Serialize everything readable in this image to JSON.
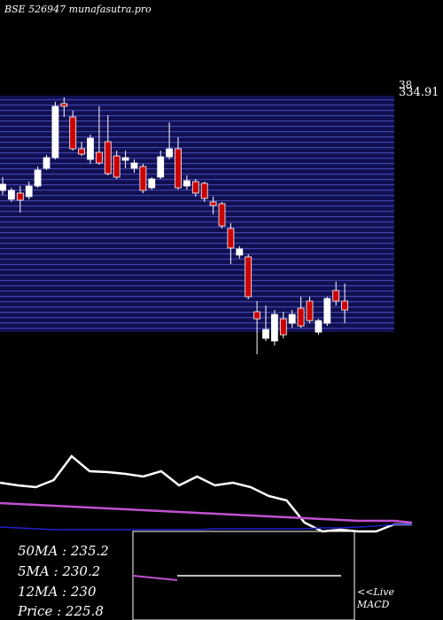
{
  "chart_data": [
    {
      "type": "candlestick",
      "title": "BSE 526947 munafasutra.pro",
      "axis_labels": [
        "38",
        "334.91"
      ],
      "up_color": "#ffffff",
      "down_color": "#cc0000",
      "ylim": [
        190,
        336
      ],
      "open": [
        282.5,
        277.5,
        281,
        279,
        285,
        295,
        301,
        331.5,
        324,
        306,
        300,
        304,
        310,
        302,
        299.5,
        295,
        296,
        284,
        290,
        301.5,
        306,
        285,
        287.5,
        286.5,
        276,
        275,
        261,
        246,
        245,
        214,
        199,
        197.5,
        210,
        207.5,
        216,
        220,
        202.5,
        207.5,
        226,
        220
      ],
      "high": [
        290,
        284,
        285,
        287.5,
        296,
        302.5,
        332.5,
        335,
        327.5,
        310,
        314,
        330,
        325,
        305,
        305,
        300,
        297.5,
        290,
        305,
        321,
        312.5,
        291,
        289,
        287.5,
        279,
        276,
        264,
        251,
        246.5,
        220,
        217.5,
        215,
        214,
        215,
        222.5,
        222.5,
        210,
        222.5,
        231,
        230
      ],
      "low": [
        280,
        276,
        270,
        277.5,
        284,
        294,
        300,
        324,
        305,
        302,
        297.5,
        297,
        291,
        289,
        295,
        292.5,
        281,
        283,
        289,
        300,
        283,
        283,
        279,
        276,
        269,
        261,
        241,
        244,
        221,
        190,
        197.5,
        195,
        199,
        205,
        205,
        207.5,
        201,
        206,
        217.5,
        207.5
      ],
      "close": [
        286,
        282.5,
        277,
        285,
        294,
        301,
        330,
        330,
        306,
        303,
        312,
        298,
        292,
        290,
        301,
        298,
        282.5,
        289,
        301.5,
        306,
        284,
        288,
        281,
        278,
        274,
        262.5,
        250,
        249.5,
        222.5,
        210,
        204,
        212.5,
        201,
        212.5,
        206,
        209,
        209,
        221.5,
        220,
        215
      ]
    },
    {
      "type": "line",
      "ylim": [
        0,
        100
      ],
      "series": [
        {
          "color": "#ffffff",
          "values": [
            55,
            52,
            50,
            58,
            85,
            68,
            67,
            65,
            62,
            68,
            52,
            62,
            52,
            55,
            50,
            40,
            35,
            10,
            0,
            2,
            0,
            0,
            8,
            8
          ]
        },
        {
          "color": "#c050d0",
          "values": [
            32,
            31,
            30,
            29,
            28,
            27,
            26,
            25,
            24,
            23,
            22,
            21,
            20,
            19,
            18,
            17,
            16,
            15,
            14,
            13,
            12,
            12,
            12,
            10
          ]
        },
        {
          "color": "#2020d0",
          "values": [
            5,
            4,
            3,
            2,
            2,
            2,
            2,
            2,
            2,
            2,
            2,
            2,
            3,
            3,
            3,
            3,
            3,
            3,
            4,
            4,
            5,
            6,
            8,
            8
          ]
        }
      ]
    },
    {
      "type": "text",
      "stats": [
        "50MA : 235.2",
        "5MA : 230.2",
        "12MA : 230",
        "Price   : 225.8"
      ],
      "live": "<<Live",
      "macd": "MACD"
    }
  ]
}
